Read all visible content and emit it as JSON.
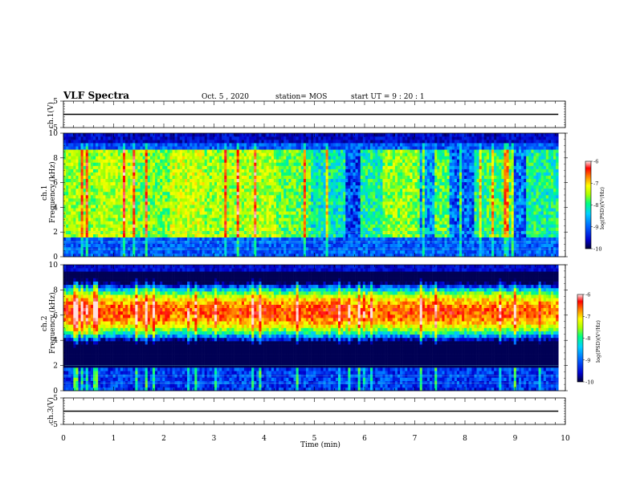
{
  "header": {
    "title": "VLF Spectra",
    "date": "Oct. 5 , 2020",
    "station": "station= MOS",
    "start": "start UT = 9 : 20 : 1"
  },
  "colors": {
    "colormap": [
      "#000033",
      "#0000cc",
      "#0055ff",
      "#00c8ff",
      "#00ff80",
      "#aaff00",
      "#ffff00",
      "#ff8800",
      "#ff0000",
      "#ffe0e0"
    ],
    "trace": "#000000"
  },
  "chart_data": [
    {
      "type": "line",
      "panel": "ch1-waveform",
      "ylabel": "ch.1(V)",
      "ylim": [
        -5,
        5
      ],
      "yticks": [
        5,
        -5
      ],
      "x": [
        0,
        9.86
      ],
      "values": [
        0,
        0
      ]
    },
    {
      "type": "heatmap",
      "panel": "ch1-spectrogram",
      "ylabel": "ch.1\nFrequency (kHz)",
      "ylim": [
        0,
        10
      ],
      "yticks": [
        0,
        2,
        4,
        6,
        8,
        10
      ],
      "xlim": [
        0,
        10
      ],
      "data_end_x": 9.86,
      "colorbar": {
        "label": "log(PSD)(V²/Hz)",
        "range": [
          -10,
          -6
        ],
        "ticks": [
          -6,
          -7,
          -8,
          -9,
          -10
        ]
      },
      "band_kHz": [
        1.5,
        8.8
      ],
      "mean_log_psd": [
        -7.8,
        -7.7,
        -7.9,
        -7.6,
        -7.8,
        -7.7,
        -8.0,
        -8.4,
        -8.3,
        -7.8,
        -8.0,
        -8.2,
        -8.1,
        -8.3
      ],
      "quiet_intervals_min": [
        [
          5.6,
          5.9
        ],
        [
          7.1,
          7.4
        ],
        [
          7.7,
          8.2
        ],
        [
          8.9,
          9.2
        ]
      ]
    },
    {
      "type": "heatmap",
      "panel": "ch2-spectrogram",
      "ylabel": "ch.2\nFrequency (kHz)",
      "ylim": [
        0,
        10
      ],
      "yticks": [
        0,
        2,
        4,
        6,
        8,
        10
      ],
      "xlim": [
        0,
        10
      ],
      "data_end_x": 9.86,
      "colorbar": {
        "label": "log(PSD)(V²/Hz)",
        "range": [
          -10,
          -6
        ],
        "ticks": [
          -6,
          -7,
          -8,
          -9,
          -10
        ]
      },
      "peak_band_kHz": [
        5.0,
        7.5
      ],
      "mean_log_psd_peak": [
        -6.6,
        -6.7,
        -6.6,
        -6.8,
        -6.7,
        -6.6,
        -6.7,
        -6.6,
        -6.8,
        -6.7,
        -6.6,
        -6.7,
        -6.7,
        -6.8
      ]
    },
    {
      "type": "line",
      "panel": "ch3-waveform",
      "ylabel": "ch.3(V)",
      "ylim": [
        -5,
        5
      ],
      "yticks": [
        5,
        -5
      ],
      "x": [
        0,
        9.86
      ],
      "values": [
        0,
        0
      ]
    }
  ],
  "xaxis": {
    "label": "Time (min)",
    "range": [
      0,
      10
    ],
    "ticks": [
      0,
      1,
      2,
      3,
      4,
      5,
      6,
      7,
      8,
      9,
      10
    ]
  }
}
